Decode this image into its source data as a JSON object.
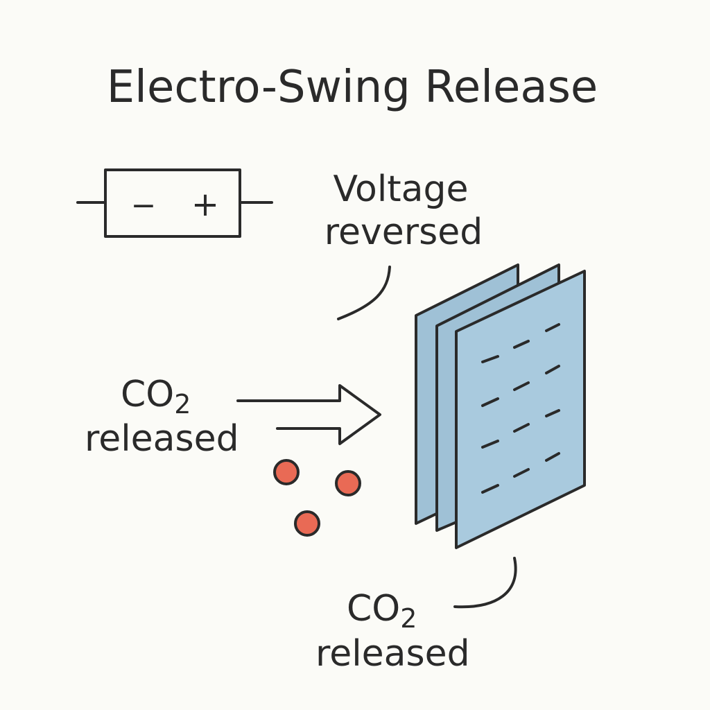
{
  "title": "Electro-Swing Release",
  "battery": {
    "minus": "−",
    "plus": "+"
  },
  "labels": {
    "voltage_line1": "Voltage",
    "voltage_line2": "reversed",
    "left_co2": "CO",
    "left_co2_sub": "2",
    "left_released": "released",
    "bottom_co2": "CO",
    "bottom_co2_sub": "2",
    "bottom_released": "released"
  },
  "colors": {
    "ink": "#2a2a2a",
    "plate_fill": "#9fc1d6",
    "plate_front": "#a9cade",
    "molecule": "#e96a55",
    "background": "#fbfbf7"
  }
}
